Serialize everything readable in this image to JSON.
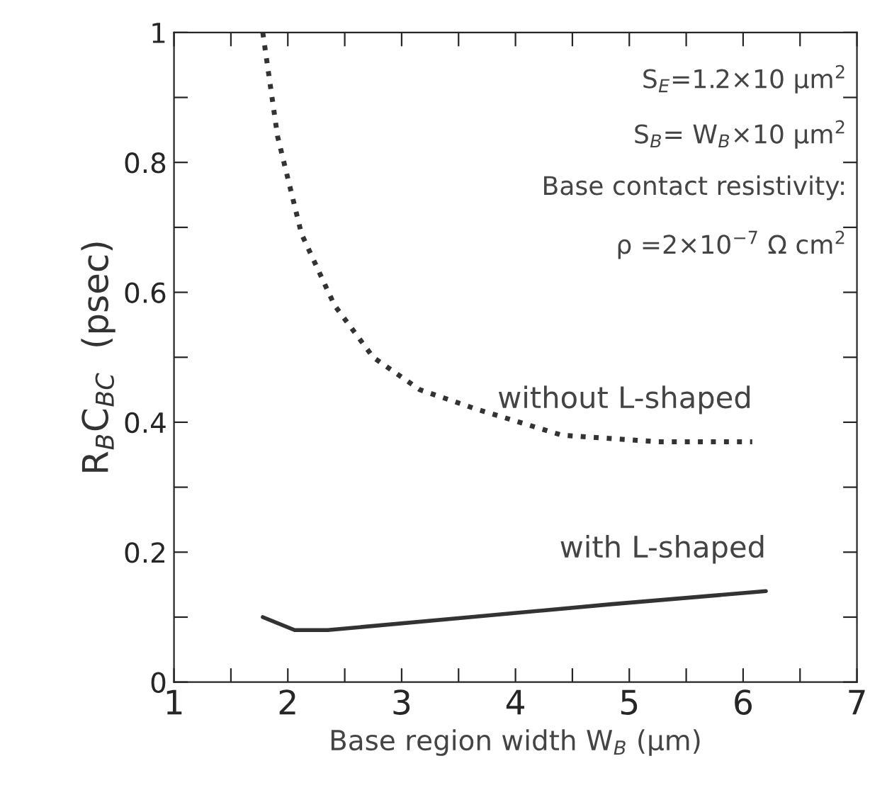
{
  "chart_data": {
    "type": "line",
    "xlabel": "Base region width W$_{B}$ (μm)",
    "ylabel": "R$_{B}$C$_{BC}$  (psec)",
    "xlim": [
      1,
      7
    ],
    "ylim": [
      0,
      1
    ],
    "xticks": [
      1,
      {
        "value": 1.5,
        "label": null
      },
      2,
      {
        "value": 2.5,
        "label": null
      },
      3,
      {
        "value": 3.5,
        "label": null
      },
      4,
      {
        "value": 4.5,
        "label": null
      },
      5,
      {
        "value": 5.5,
        "label": null
      },
      6,
      {
        "value": 6.5,
        "label": null
      },
      7
    ],
    "yticks": [
      0,
      {
        "value": 0.1,
        "label": null
      },
      0.2,
      {
        "value": 0.3,
        "label": null
      },
      0.4,
      {
        "value": 0.5,
        "label": null
      },
      0.6,
      {
        "value": 0.7,
        "label": null
      },
      0.8,
      {
        "value": 0.9,
        "label": null
      },
      1
    ],
    "grid": false,
    "marker": "none",
    "series": [
      {
        "name": "without L-shaped",
        "color": "#333333",
        "line_style": "dotted",
        "x": [
          1.78,
          1.91,
          2.12,
          2.41,
          2.75,
          3.16,
          3.66,
          4.41,
          5.25,
          6.08
        ],
        "values": [
          1.0,
          0.84,
          0.69,
          0.58,
          0.5,
          0.45,
          0.42,
          0.38,
          0.37,
          0.37
        ]
      },
      {
        "name": "with L-shaped",
        "color": "#333333",
        "line_style": "solid",
        "x": [
          1.78,
          2.06,
          2.35,
          3.6,
          4.85,
          6.2
        ],
        "values": [
          0.1,
          0.08,
          0.08,
          0.1,
          0.12,
          0.14
        ]
      }
    ],
    "annotations": [
      "S$_{E}$=1.2×10 μm$^{2}$",
      "S$_{B}$= W$_{B}$×10 μm$^{2}$",
      "Base contact resistivity:",
      "ρ =2×10$^{−7}$ Ω cm$^{2}$"
    ]
  }
}
